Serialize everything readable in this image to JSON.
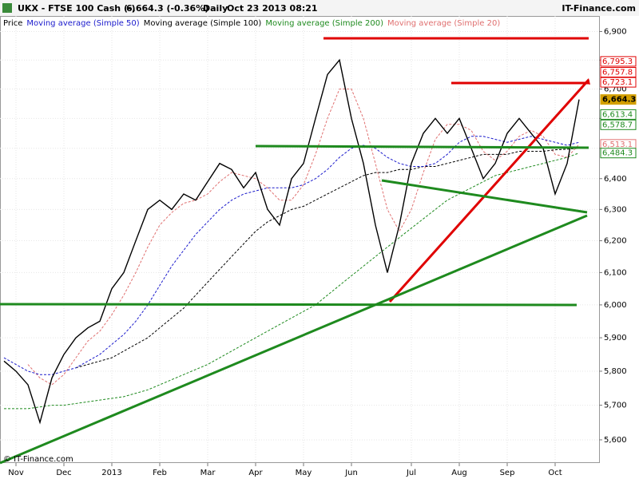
{
  "chart_data": {
    "type": "line",
    "header": {
      "symbol": "UKX - FTSE 100 Cash (-)",
      "quote": "6,664.3 (-0.36%)",
      "period": "Daily",
      "datetime": "Oct 23 2013 08:21",
      "brand": "IT-Finance.com"
    },
    "footer": "© IT-Finance.com",
    "log_scale": true,
    "grid": true,
    "ylim": [
      5534,
      6955
    ],
    "yticks": [
      {
        "value": 5600,
        "label": "5,600"
      },
      {
        "value": 5700,
        "label": "5,700"
      },
      {
        "value": 5800,
        "label": "5,800"
      },
      {
        "value": 5900,
        "label": "5,900"
      },
      {
        "value": 6000,
        "label": "6,000"
      },
      {
        "value": 6100,
        "label": "6,100"
      },
      {
        "value": 6200,
        "label": "6,200"
      },
      {
        "value": 6300,
        "label": "6,300"
      },
      {
        "value": 6400,
        "label": "6,400"
      },
      {
        "value": 6500,
        "label": "6,500"
      },
      {
        "value": 6600,
        "label": "6,600"
      },
      {
        "value": 6700,
        "label": "6,700"
      },
      {
        "value": 6800,
        "label": "6,800"
      },
      {
        "value": 6900,
        "label": "6,900"
      }
    ],
    "categories": [
      null,
      "Nov",
      null,
      null,
      null,
      "Dec",
      null,
      null,
      null,
      "2013",
      null,
      null,
      null,
      "Feb",
      null,
      null,
      null,
      "Mar",
      null,
      null,
      null,
      "Apr",
      null,
      null,
      null,
      "May",
      null,
      null,
      null,
      "Jun",
      null,
      null,
      null,
      null,
      "Jul",
      null,
      null,
      null,
      "Aug",
      null,
      null,
      null,
      "Sep",
      null,
      null,
      null,
      "Oct",
      null,
      null
    ],
    "series": [
      {
        "name": "Price",
        "color": "#000000",
        "dashed": false,
        "values": [
          5830,
          5800,
          5760,
          5650,
          5780,
          5850,
          5900,
          5930,
          5950,
          6050,
          6100,
          6200,
          6300,
          6330,
          6300,
          6350,
          6330,
          6390,
          6450,
          6430,
          6370,
          6420,
          6300,
          6250,
          6400,
          6450,
          6600,
          6750,
          6800,
          6600,
          6450,
          6250,
          6100,
          6250,
          6450,
          6550,
          6600,
          6550,
          6600,
          6500,
          6400,
          6450,
          6550,
          6600,
          6550,
          6500,
          6350,
          6450,
          6664.3
        ]
      },
      {
        "name": "Moving average (Simple 50)",
        "color": "#1a1acc",
        "dashed": true,
        "values": [
          5840,
          5820,
          5800,
          5790,
          5790,
          5800,
          5810,
          5830,
          5850,
          5880,
          5910,
          5950,
          6000,
          6060,
          6120,
          6170,
          6220,
          6260,
          6300,
          6330,
          6350,
          6360,
          6370,
          6370,
          6370,
          6380,
          6400,
          6430,
          6470,
          6500,
          6510,
          6500,
          6470,
          6450,
          6440,
          6440,
          6450,
          6480,
          6520,
          6540,
          6540,
          6530,
          6520,
          6530,
          6540,
          6530,
          6520,
          6510,
          6520
        ]
      },
      {
        "name": "Moving average (Simple 100)",
        "color": "#000000",
        "dashed": true,
        "values": [
          null,
          null,
          null,
          null,
          null,
          null,
          5810,
          5820,
          5830,
          5840,
          5860,
          5880,
          5900,
          5930,
          5960,
          5990,
          6030,
          6070,
          6110,
          6150,
          6190,
          6230,
          6260,
          6280,
          6300,
          6310,
          6330,
          6350,
          6370,
          6390,
          6410,
          6420,
          6420,
          6430,
          6430,
          6440,
          6440,
          6450,
          6460,
          6470,
          6480,
          6480,
          6480,
          6490,
          6490,
          6490,
          6495,
          6497,
          6500
        ]
      },
      {
        "name": "Moving average (Simple 200)",
        "color": "#1e8a1e",
        "dashed": true,
        "values": [
          5690,
          5690,
          5690,
          5695,
          5700,
          5700,
          5705,
          5710,
          5715,
          5720,
          5725,
          5735,
          5745,
          5760,
          5775,
          5790,
          5805,
          5820,
          5840,
          5860,
          5880,
          5900,
          5920,
          5940,
          5960,
          5980,
          6000,
          6030,
          6060,
          6090,
          6120,
          6150,
          6180,
          6210,
          6240,
          6270,
          6300,
          6330,
          6350,
          6370,
          6390,
          6410,
          6420,
          6430,
          6440,
          6450,
          6460,
          6470,
          6484.3
        ]
      },
      {
        "name": "Moving average (Simple 20)",
        "color": "#e07070",
        "dashed": true,
        "values": [
          null,
          null,
          5820,
          5780,
          5760,
          5790,
          5840,
          5890,
          5920,
          5970,
          6030,
          6100,
          6180,
          6250,
          6290,
          6320,
          6330,
          6350,
          6390,
          6420,
          6410,
          6400,
          6370,
          6330,
          6330,
          6380,
          6480,
          6600,
          6700,
          6700,
          6600,
          6450,
          6300,
          6230,
          6300,
          6420,
          6530,
          6580,
          6580,
          6560,
          6490,
          6460,
          6490,
          6540,
          6560,
          6540,
          6480,
          6470,
          6513.1
        ]
      }
    ],
    "legend_prefix": "Price",
    "right_labels": {
      "values": [
        6795.3,
        6757.8,
        6723.1,
        6664.3,
        6613.4,
        6578.7,
        6513.1,
        6484.3
      ],
      "value_labels": [
        "6,795.3",
        "6,757.8",
        "6,723.1",
        "6,664.3",
        "6,613.4",
        "6,578.7",
        "6,513.1",
        "6,484.3"
      ],
      "colors": [
        "#e00000",
        "#e00000",
        "#e00000",
        "#d4a000",
        "#1e8a1e",
        "#1e8a1e",
        "#e07070",
        "#1e8a1e"
      ]
    }
  }
}
